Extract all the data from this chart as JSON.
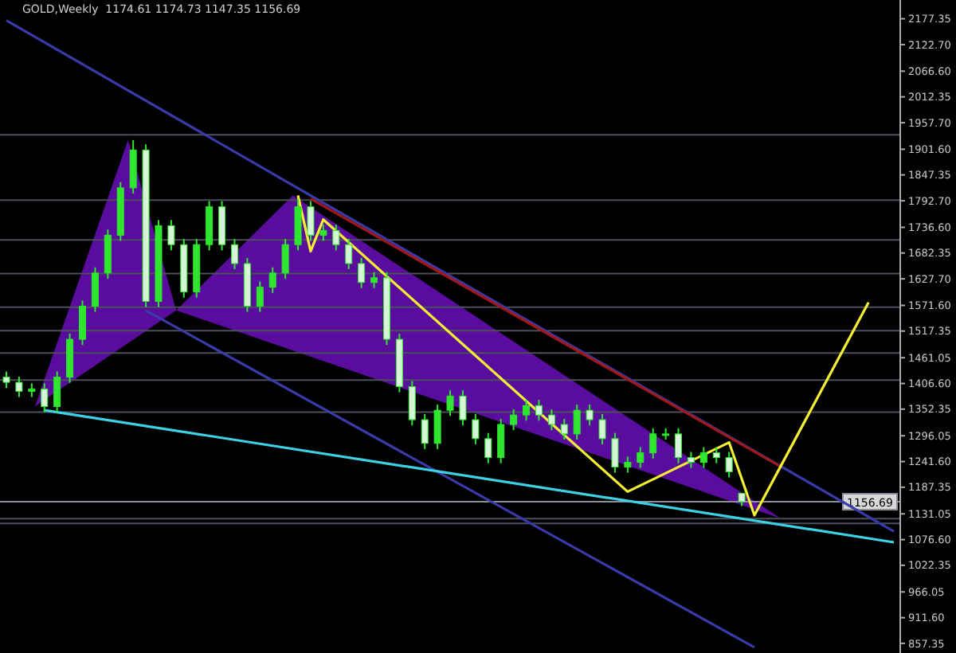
{
  "chart_data": {
    "type": "candlestick",
    "title": "GOLD,Weekly  1174.61 1174.73 1147.35 1156.69",
    "color": "#2ee62e",
    "categories": [
      null,
      null,
      null,
      null,
      null,
      null,
      null,
      null,
      null,
      null,
      null,
      null,
      null,
      null,
      null,
      null,
      null,
      null,
      null,
      null,
      null,
      null,
      null,
      null,
      null,
      null,
      null,
      null,
      null,
      null,
      null,
      null,
      null,
      null,
      null,
      null,
      null,
      null,
      null,
      null,
      null,
      null,
      null,
      null,
      null,
      null,
      null,
      null,
      null,
      null,
      null,
      null,
      null,
      null,
      null,
      null,
      null,
      null,
      null,
      null,
      null,
      null,
      null,
      null,
      null,
      null,
      null,
      null,
      null,
      null,
      null
    ],
    "ohlc": [
      [
        1420,
        1432,
        1397,
        1409
      ],
      [
        1409,
        1421,
        1378,
        1390
      ],
      [
        1390,
        1407,
        1378,
        1395
      ],
      [
        1395,
        1407,
        1346,
        1358
      ],
      [
        1358,
        1432,
        1346,
        1420
      ],
      [
        1420,
        1512,
        1408,
        1500
      ],
      [
        1500,
        1582,
        1488,
        1570
      ],
      [
        1570,
        1652,
        1558,
        1640
      ],
      [
        1640,
        1732,
        1628,
        1720
      ],
      [
        1720,
        1832,
        1708,
        1820
      ],
      [
        1820,
        1921,
        1808,
        1900
      ],
      [
        1900,
        1912,
        1568,
        1580
      ],
      [
        1580,
        1752,
        1568,
        1740
      ],
      [
        1740,
        1752,
        1688,
        1700
      ],
      [
        1700,
        1712,
        1588,
        1600
      ],
      [
        1600,
        1712,
        1588,
        1700
      ],
      [
        1700,
        1792,
        1688,
        1780
      ],
      [
        1780,
        1792,
        1688,
        1700
      ],
      [
        1700,
        1712,
        1648,
        1660
      ],
      [
        1660,
        1672,
        1558,
        1570
      ],
      [
        1570,
        1622,
        1558,
        1610
      ],
      [
        1610,
        1652,
        1598,
        1640
      ],
      [
        1640,
        1712,
        1628,
        1700
      ],
      [
        1700,
        1795,
        1688,
        1780
      ],
      [
        1780,
        1792,
        1708,
        1720
      ],
      [
        1720,
        1742,
        1708,
        1730
      ],
      [
        1730,
        1742,
        1688,
        1700
      ],
      [
        1700,
        1712,
        1648,
        1660
      ],
      [
        1660,
        1672,
        1608,
        1620
      ],
      [
        1620,
        1642,
        1608,
        1630
      ],
      [
        1630,
        1642,
        1488,
        1500
      ],
      [
        1500,
        1512,
        1388,
        1400
      ],
      [
        1400,
        1412,
        1318,
        1330
      ],
      [
        1330,
        1342,
        1268,
        1280
      ],
      [
        1280,
        1362,
        1268,
        1350
      ],
      [
        1350,
        1392,
        1338,
        1380
      ],
      [
        1380,
        1392,
        1318,
        1330
      ],
      [
        1330,
        1342,
        1278,
        1290
      ],
      [
        1290,
        1302,
        1238,
        1250
      ],
      [
        1250,
        1332,
        1238,
        1320
      ],
      [
        1320,
        1352,
        1308,
        1340
      ],
      [
        1340,
        1372,
        1328,
        1360
      ],
      [
        1360,
        1372,
        1328,
        1340
      ],
      [
        1340,
        1352,
        1308,
        1320
      ],
      [
        1320,
        1332,
        1288,
        1300
      ],
      [
        1300,
        1362,
        1288,
        1350
      ],
      [
        1350,
        1362,
        1318,
        1330
      ],
      [
        1330,
        1342,
        1278,
        1290
      ],
      [
        1290,
        1302,
        1218,
        1230
      ],
      [
        1230,
        1252,
        1218,
        1240
      ],
      [
        1240,
        1272,
        1228,
        1260
      ],
      [
        1260,
        1312,
        1248,
        1300
      ],
      [
        1300,
        1312,
        1288,
        1300
      ],
      [
        1300,
        1312,
        1238,
        1250
      ],
      [
        1250,
        1262,
        1228,
        1240
      ],
      [
        1240,
        1272,
        1228,
        1260
      ],
      [
        1260,
        1272,
        1238,
        1250
      ],
      [
        1250,
        1262,
        1208,
        1220
      ],
      [
        1174.61,
        1174.73,
        1147.35,
        1156.69
      ],
      null,
      null,
      null,
      null,
      null,
      null,
      null,
      null,
      null,
      null,
      null,
      null
    ],
    "series": [
      {
        "type": "line",
        "color": "#3a3aa8",
        "values": [
          2174,
          null,
          null,
          null,
          null,
          null,
          null,
          null,
          null,
          null,
          null,
          null,
          null,
          null,
          null,
          null,
          null,
          null,
          null,
          null,
          null,
          null,
          null,
          null,
          null,
          null,
          null,
          null,
          null,
          null,
          null,
          null,
          null,
          null,
          null,
          null,
          null,
          null,
          null,
          null,
          null,
          null,
          null,
          null,
          null,
          null,
          null,
          null,
          null,
          null,
          null,
          null,
          null,
          null,
          null,
          null,
          null,
          null,
          null,
          null,
          null,
          null,
          null,
          null,
          null,
          null,
          null,
          null,
          null,
          null,
          1094
        ]
      },
      {
        "type": "line",
        "color": "#3a3aa8",
        "values": [
          null,
          null,
          null,
          null,
          null,
          null,
          null,
          null,
          null,
          null,
          null,
          1561,
          null,
          null,
          null,
          null,
          null,
          null,
          null,
          null,
          null,
          null,
          null,
          null,
          null,
          null,
          null,
          null,
          null,
          null,
          null,
          null,
          null,
          null,
          null,
          null,
          null,
          null,
          null,
          null,
          null,
          null,
          null,
          null,
          null,
          null,
          null,
          null,
          null,
          null,
          null,
          null,
          null,
          null,
          null,
          null,
          null,
          null,
          null,
          849,
          null,
          null,
          null,
          null,
          null,
          null,
          null,
          null,
          null,
          null,
          null
        ]
      },
      {
        "type": "line",
        "color": "#a01818",
        "values": [
          null,
          null,
          null,
          null,
          null,
          null,
          null,
          null,
          null,
          null,
          null,
          null,
          null,
          null,
          null,
          null,
          null,
          null,
          null,
          null,
          null,
          null,
          null,
          null,
          1797,
          null,
          null,
          null,
          null,
          null,
          null,
          null,
          null,
          null,
          null,
          null,
          null,
          null,
          null,
          null,
          null,
          null,
          null,
          null,
          null,
          null,
          null,
          null,
          null,
          null,
          null,
          null,
          null,
          null,
          null,
          null,
          null,
          null,
          null,
          null,
          null,
          1232,
          null,
          null,
          null,
          null,
          null,
          null,
          null,
          null,
          null
        ]
      },
      {
        "type": "line",
        "color": "#3cd2e6",
        "values": [
          null,
          null,
          null,
          1350,
          null,
          null,
          null,
          null,
          null,
          null,
          null,
          null,
          null,
          null,
          null,
          null,
          null,
          null,
          null,
          null,
          null,
          null,
          null,
          null,
          null,
          null,
          null,
          null,
          null,
          null,
          null,
          null,
          null,
          null,
          null,
          null,
          null,
          null,
          null,
          null,
          null,
          null,
          null,
          null,
          null,
          null,
          null,
          null,
          null,
          null,
          null,
          null,
          null,
          null,
          null,
          null,
          null,
          null,
          null,
          null,
          null,
          null,
          null,
          null,
          null,
          null,
          null,
          null,
          null,
          null,
          1071
        ]
      },
      {
        "type": "line",
        "color": "#f5f032",
        "values": [
          null,
          null,
          null,
          null,
          null,
          null,
          null,
          null,
          null,
          null,
          null,
          null,
          null,
          null,
          null,
          null,
          null,
          null,
          null,
          null,
          null,
          null,
          null,
          1804,
          1686,
          1753,
          null,
          null,
          null,
          null,
          null,
          null,
          null,
          null,
          null,
          null,
          null,
          null,
          null,
          null,
          null,
          null,
          null,
          null,
          null,
          null,
          null,
          null,
          null,
          1178,
          null,
          null,
          null,
          null,
          null,
          null,
          null,
          1282,
          null,
          1128,
          null,
          null,
          null,
          null,
          null,
          null,
          null,
          null,
          1578,
          null,
          null
        ]
      }
    ],
    "ylim": [
      837,
      2217
    ],
    "yticks": [
      {
        "value": 2177.35,
        "label": "2177.35"
      },
      {
        "value": 2122.7,
        "label": "2122.70"
      },
      {
        "value": 2066.6,
        "label": "2066.60"
      },
      {
        "value": 2012.35,
        "label": "2012.35"
      },
      {
        "value": 1957.7,
        "label": "1957.70"
      },
      {
        "value": 1901.6,
        "label": "1901.60"
      },
      {
        "value": 1847.35,
        "label": "1847.35"
      },
      {
        "value": 1792.7,
        "label": "1792.70"
      },
      {
        "value": 1736.6,
        "label": "1736.60"
      },
      {
        "value": 1682.35,
        "label": "1682.35"
      },
      {
        "value": 1627.7,
        "label": "1627.70"
      },
      {
        "value": 1571.6,
        "label": "1571.60"
      },
      {
        "value": 1517.35,
        "label": "1517.35"
      },
      {
        "value": 1461.05,
        "label": "1461.05"
      },
      {
        "value": 1406.6,
        "label": "1406.60"
      },
      {
        "value": 1352.35,
        "label": "1352.35"
      },
      {
        "value": 1296.05,
        "label": "1296.05"
      },
      {
        "value": 1241.6,
        "label": "1241.60"
      },
      {
        "value": 1187.35,
        "label": "1187.35"
      },
      {
        "value": 1131.05,
        "label": "1131.05"
      },
      {
        "value": 1076.6,
        "label": "1076.60"
      },
      {
        "value": 1022.35,
        "label": "1022.35"
      },
      {
        "value": 966.05,
        "label": "966.05"
      },
      {
        "value": 911.6,
        "label": "911.60"
      },
      {
        "value": 857.35,
        "label": "857.35"
      }
    ],
    "ref_lines": [
      {
        "axis": "y",
        "value": 1932,
        "color": "#4a4f5a"
      },
      {
        "axis": "y",
        "value": 1794,
        "color": "#4a4f5a"
      },
      {
        "axis": "y",
        "value": 1710,
        "color": "#4a4f5a"
      },
      {
        "axis": "y",
        "value": 1639,
        "color": "#4a4f5a"
      },
      {
        "axis": "y",
        "value": 1568,
        "color": "#4a4f5a"
      },
      {
        "axis": "y",
        "value": 1518,
        "color": "#4a4f5a"
      },
      {
        "axis": "y",
        "value": 1471,
        "color": "#4a4f5a"
      },
      {
        "axis": "y",
        "value": 1414,
        "color": "#4a4f5a"
      },
      {
        "axis": "y",
        "value": 1346,
        "color": "#4a4f5a"
      },
      {
        "axis": "y",
        "value": 1156.69,
        "label": "1156.69",
        "color": "#8a8f9a"
      },
      {
        "axis": "y",
        "value": 1121,
        "color": "#4a4f5a"
      },
      {
        "axis": "y",
        "value": 1111,
        "color": "#4a4f5a"
      }
    ],
    "tick_labels": "y",
    "marker": "none",
    "line_style": "solid"
  }
}
